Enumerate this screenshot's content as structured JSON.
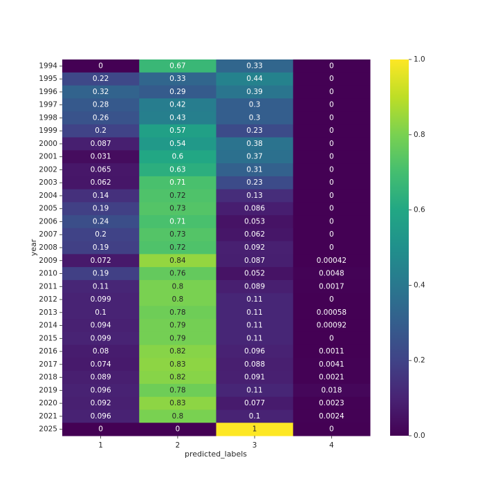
{
  "chart_data": {
    "type": "heatmap",
    "title": "",
    "xlabel": "predicted_labels",
    "ylabel": "year",
    "x_categories": [
      "1",
      "2",
      "3",
      "4"
    ],
    "y_categories": [
      "1994",
      "1995",
      "1996",
      "1997",
      "1998",
      "1999",
      "2000",
      "2001",
      "2002",
      "2003",
      "2004",
      "2005",
      "2006",
      "2007",
      "2008",
      "2009",
      "2010",
      "2011",
      "2012",
      "2013",
      "2014",
      "2015",
      "2016",
      "2017",
      "2018",
      "2019",
      "2020",
      "2021",
      "2025"
    ],
    "values": [
      [
        0,
        0.67,
        0.33,
        0
      ],
      [
        0.22,
        0.33,
        0.44,
        0
      ],
      [
        0.32,
        0.29,
        0.39,
        0
      ],
      [
        0.28,
        0.42,
        0.3,
        0
      ],
      [
        0.26,
        0.43,
        0.3,
        0
      ],
      [
        0.2,
        0.57,
        0.23,
        0
      ],
      [
        0.087,
        0.54,
        0.38,
        0
      ],
      [
        0.031,
        0.6,
        0.37,
        0
      ],
      [
        0.065,
        0.63,
        0.31,
        0
      ],
      [
        0.062,
        0.71,
        0.23,
        0
      ],
      [
        0.14,
        0.72,
        0.13,
        0
      ],
      [
        0.19,
        0.73,
        0.086,
        0
      ],
      [
        0.24,
        0.71,
        0.053,
        0
      ],
      [
        0.2,
        0.73,
        0.062,
        0
      ],
      [
        0.19,
        0.72,
        0.092,
        0
      ],
      [
        0.072,
        0.84,
        0.087,
        0.00042
      ],
      [
        0.19,
        0.76,
        0.052,
        0.0048
      ],
      [
        0.11,
        0.8,
        0.089,
        0.0017
      ],
      [
        0.099,
        0.8,
        0.11,
        0
      ],
      [
        0.1,
        0.78,
        0.11,
        0.00058
      ],
      [
        0.094,
        0.79,
        0.11,
        0.00092
      ],
      [
        0.099,
        0.79,
        0.11,
        0
      ],
      [
        0.08,
        0.82,
        0.096,
        0.0011
      ],
      [
        0.074,
        0.83,
        0.088,
        0.0041
      ],
      [
        0.089,
        0.82,
        0.091,
        0.0021
      ],
      [
        0.096,
        0.78,
        0.11,
        0.018
      ],
      [
        0.092,
        0.83,
        0.077,
        0.0023
      ],
      [
        0.096,
        0.8,
        0.1,
        0.0024
      ],
      [
        0,
        0,
        1,
        0
      ]
    ],
    "value_labels": [
      [
        "0",
        "0.67",
        "0.33",
        "0"
      ],
      [
        "0.22",
        "0.33",
        "0.44",
        "0"
      ],
      [
        "0.32",
        "0.29",
        "0.39",
        "0"
      ],
      [
        "0.28",
        "0.42",
        "0.3",
        "0"
      ],
      [
        "0.26",
        "0.43",
        "0.3",
        "0"
      ],
      [
        "0.2",
        "0.57",
        "0.23",
        "0"
      ],
      [
        "0.087",
        "0.54",
        "0.38",
        "0"
      ],
      [
        "0.031",
        "0.6",
        "0.37",
        "0"
      ],
      [
        "0.065",
        "0.63",
        "0.31",
        "0"
      ],
      [
        "0.062",
        "0.71",
        "0.23",
        "0"
      ],
      [
        "0.14",
        "0.72",
        "0.13",
        "0"
      ],
      [
        "0.19",
        "0.73",
        "0.086",
        "0"
      ],
      [
        "0.24",
        "0.71",
        "0.053",
        "0"
      ],
      [
        "0.2",
        "0.73",
        "0.062",
        "0"
      ],
      [
        "0.19",
        "0.72",
        "0.092",
        "0"
      ],
      [
        "0.072",
        "0.84",
        "0.087",
        "0.00042"
      ],
      [
        "0.19",
        "0.76",
        "0.052",
        "0.0048"
      ],
      [
        "0.11",
        "0.8",
        "0.089",
        "0.0017"
      ],
      [
        "0.099",
        "0.8",
        "0.11",
        "0"
      ],
      [
        "0.1",
        "0.78",
        "0.11",
        "0.00058"
      ],
      [
        "0.094",
        "0.79",
        "0.11",
        "0.00092"
      ],
      [
        "0.099",
        "0.79",
        "0.11",
        "0"
      ],
      [
        "0.08",
        "0.82",
        "0.096",
        "0.0011"
      ],
      [
        "0.074",
        "0.83",
        "0.088",
        "0.0041"
      ],
      [
        "0.089",
        "0.82",
        "0.091",
        "0.0021"
      ],
      [
        "0.096",
        "0.78",
        "0.11",
        "0.018"
      ],
      [
        "0.092",
        "0.83",
        "0.077",
        "0.0023"
      ],
      [
        "0.096",
        "0.8",
        "0.1",
        "0.0024"
      ],
      [
        "0",
        "0",
        "1",
        "0"
      ]
    ],
    "colormap": "viridis",
    "value_range": [
      0,
      1
    ],
    "colorbar": {
      "ticks": [
        0,
        0.2,
        0.4,
        0.6,
        0.8,
        1.0
      ],
      "tick_labels": [
        "0.0",
        "0.2",
        "0.4",
        "0.6",
        "0.8",
        "1.0"
      ]
    },
    "annotation_colors": {
      "on_dark": "#ffffff",
      "on_light": "#262626"
    },
    "grid": false,
    "legend": "colorbar-right"
  }
}
